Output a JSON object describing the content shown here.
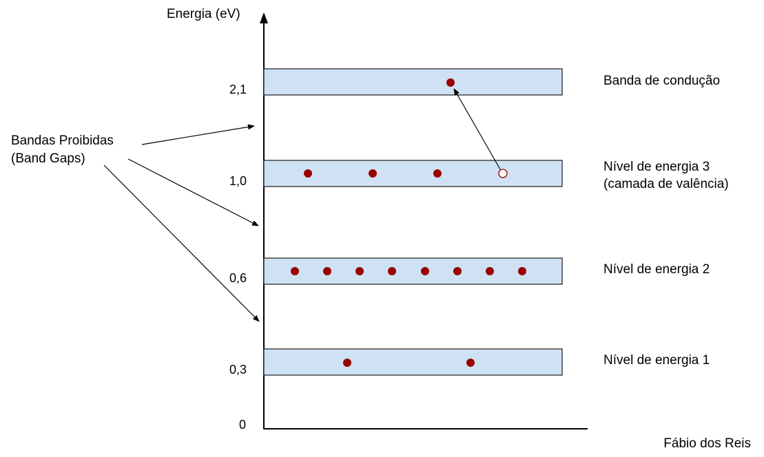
{
  "axis": {
    "label": "Energia (eV)",
    "ticks": [
      "2,1",
      "1,0",
      "0,6",
      "0,3",
      "0"
    ]
  },
  "bands": [
    {
      "id": "conduction",
      "energy": "2,1",
      "label_lines": [
        "Banda de condução"
      ],
      "electrons": 1,
      "holes": 0
    },
    {
      "id": "level3",
      "energy": "1,0",
      "label_lines": [
        "Nível de energia 3",
        "(camada de valência)"
      ],
      "electrons": 3,
      "holes": 1
    },
    {
      "id": "level2",
      "energy": "0,6",
      "label_lines": [
        "Nível de energia 2"
      ],
      "electrons": 8,
      "holes": 0
    },
    {
      "id": "level1",
      "energy": "0,3",
      "label_lines": [
        "Nível de energia 1"
      ],
      "electrons": 2,
      "holes": 0
    }
  ],
  "band_gaps": {
    "label_lines": [
      "Bandas Proibidas",
      "(Band Gaps)"
    ],
    "count": 3
  },
  "transition": {
    "from": "level3 hole",
    "to": "conduction electron"
  },
  "credit": "Fábio dos Reis",
  "colors": {
    "band_fill": "#cfe2f3",
    "electron": "#990000",
    "credit": "#9fc5e8"
  }
}
